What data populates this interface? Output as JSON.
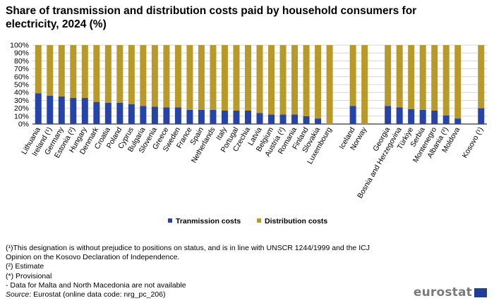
{
  "title": "Share of transmission and distribution costs paid by household consumers for electricity, 2024 (%)",
  "chart_data": {
    "type": "bar",
    "stacked": true,
    "percent_stacked": true,
    "categories": [
      "Lithuania",
      "Ireland (¹)",
      "Germany",
      "Estonia (²)",
      "Hungary",
      "Denmark",
      "Croatia",
      "Poland",
      "Cyprus",
      "Bulgaria",
      "Slovenia",
      "Greece",
      "Sweden",
      "France",
      "Spain",
      "Netherlands",
      "Italy",
      "Portugal",
      "Czechia",
      "Latvia",
      "Belgium",
      "Austria (²)",
      "Romania",
      "Finland",
      "Slovakia",
      "Luxembourg",
      "",
      "Iceland",
      "Norway",
      "",
      "Georgia",
      "Bosnia and Herzegovina",
      "Türkiye",
      "Serbia",
      "Montenegro",
      "Albania (²)",
      "Moldova",
      "",
      "Kosovo (¹)"
    ],
    "series": [
      {
        "name": "Tranmission costs",
        "color": "#2644a8",
        "values": [
          39,
          36,
          35,
          33,
          33,
          28,
          27,
          27,
          25,
          23,
          22,
          21,
          21,
          18,
          18,
          18,
          17,
          17,
          17,
          14,
          12,
          12,
          12,
          10,
          7,
          0,
          null,
          23,
          0,
          null,
          23,
          21,
          19,
          18,
          17,
          11,
          7,
          null,
          20
        ]
      },
      {
        "name": "Distribution costs",
        "color": "#b89a2b",
        "values": [
          61,
          64,
          65,
          67,
          67,
          72,
          73,
          73,
          75,
          77,
          78,
          79,
          79,
          82,
          82,
          82,
          83,
          83,
          83,
          86,
          88,
          88,
          88,
          90,
          93,
          100,
          null,
          77,
          100,
          null,
          77,
          79,
          81,
          82,
          83,
          89,
          93,
          null,
          80
        ]
      }
    ],
    "ylim": [
      0,
      100
    ],
    "yticks": [
      "0%",
      "10%",
      "20%",
      "30%",
      "40%",
      "50%",
      "60%",
      "70%",
      "80%",
      "90%",
      "100%"
    ],
    "grid": true,
    "legend": "bottom"
  },
  "notes": [
    "(¹)This designation is without prejudice to positions on status, and is in line with UNSCR 1244/1999 and the ICJ",
    "Opinion on the Kosovo Declaration of Independence.",
    "(²) Estimate",
    "(*) Provisional",
    "- Data for Malta and North Macedonia are not available"
  ],
  "source": {
    "label": "Source:",
    "text": " Eurostat (online data code: nrg_pc_206)"
  },
  "logo": "eurostat"
}
